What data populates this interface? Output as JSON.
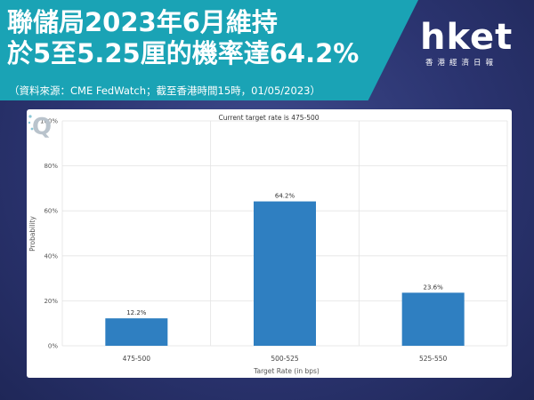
{
  "header": {
    "title_line1": "聯儲局2023年6月維持",
    "title_line2": "於5至5.25厘的機率達64.2%",
    "source": "（資料來源：CME FedWatch；截至香港時間15時，01/05/2023）"
  },
  "logo": {
    "word": "hket",
    "subtitle": "香港經濟日報"
  },
  "colors": {
    "banner": "#1aa3b5",
    "bar": "#2f7fc1",
    "background": "#2b3470"
  },
  "chart_data": {
    "type": "bar",
    "title": "Current target rate is 475-500",
    "xlabel": "Target Rate (in bps)",
    "ylabel": "Probability",
    "categories": [
      "475-500",
      "500-525",
      "525-550"
    ],
    "values": [
      12.2,
      64.2,
      23.6
    ],
    "data_labels": [
      "12.2%",
      "64.2%",
      "23.6%"
    ],
    "ylim": [
      0,
      100
    ],
    "yticks": [
      0,
      20,
      40,
      60,
      80,
      100
    ],
    "ytick_labels": [
      "0%",
      "20%",
      "40%",
      "60%",
      "80%",
      "100%"
    ],
    "grid": true,
    "legend": "none"
  }
}
